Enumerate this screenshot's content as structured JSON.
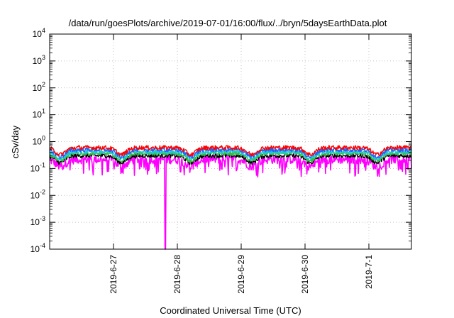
{
  "chart_data": {
    "type": "line",
    "title": "/data/run/goesPlots/archive/2019-07-01/16:00/flux/../bryn/5daysEarthData.plot",
    "xlabel": "Coordinated Universal Time (UTC)",
    "ylabel": "cSv/day",
    "y_scale": "log",
    "ylim": [
      0.0001,
      10000
    ],
    "y_ticks": [
      {
        "value": 0.0001,
        "base": "10",
        "exp": "-4"
      },
      {
        "value": 0.001,
        "base": "10",
        "exp": "-3"
      },
      {
        "value": 0.01,
        "base": "10",
        "exp": "-2"
      },
      {
        "value": 0.1,
        "base": "10",
        "exp": "-1"
      },
      {
        "value": 1,
        "base": "10",
        "exp": "0"
      },
      {
        "value": 10,
        "base": "10",
        "exp": "1"
      },
      {
        "value": 100,
        "base": "10",
        "exp": "2"
      },
      {
        "value": 1000,
        "base": "10",
        "exp": "3"
      },
      {
        "value": 10000,
        "base": "10",
        "exp": "4"
      }
    ],
    "xlim": [
      "2019-06-26 00:00",
      "2019-07-01 16:00"
    ],
    "x_ticks": [
      "2019-6-27",
      "2019-6-28",
      "2019-6-29",
      "2019-6-30",
      "2019-7-1"
    ],
    "x_tick_dates": [
      "2019-06-27",
      "2019-06-28",
      "2019-06-29",
      "2019-06-30",
      "2019-07-01"
    ],
    "grid": true,
    "legend": "none",
    "series_colors": [
      "#ff0000",
      "#2060ff",
      "#20c8d0",
      "#30c040",
      "#000000",
      "#ff00ff"
    ],
    "series": [
      {
        "color": "#ff0000",
        "typical_value": 0.6,
        "min_value": 0.3
      },
      {
        "color": "#2060ff",
        "typical_value": 0.5,
        "min_value": 0.25
      },
      {
        "color": "#20c8d0",
        "typical_value": 0.42,
        "min_value": 0.2
      },
      {
        "color": "#30c040",
        "typical_value": 0.36,
        "min_value": 0.18
      },
      {
        "color": "#000000",
        "typical_value": 0.3,
        "min_value": 0.15
      },
      {
        "color": "#ff00ff",
        "typical_value": 0.22,
        "min_value": 0.06,
        "dropout": {
          "time": "2019-06-27 19:30",
          "value": 0.0001
        }
      }
    ],
    "dips": [
      "2019-06-26 04:00",
      "2019-06-27 03:00",
      "2019-06-28 05:00",
      "2019-06-29 04:00",
      "2019-06-30 02:00",
      "2019-07-01 03:00"
    ]
  }
}
